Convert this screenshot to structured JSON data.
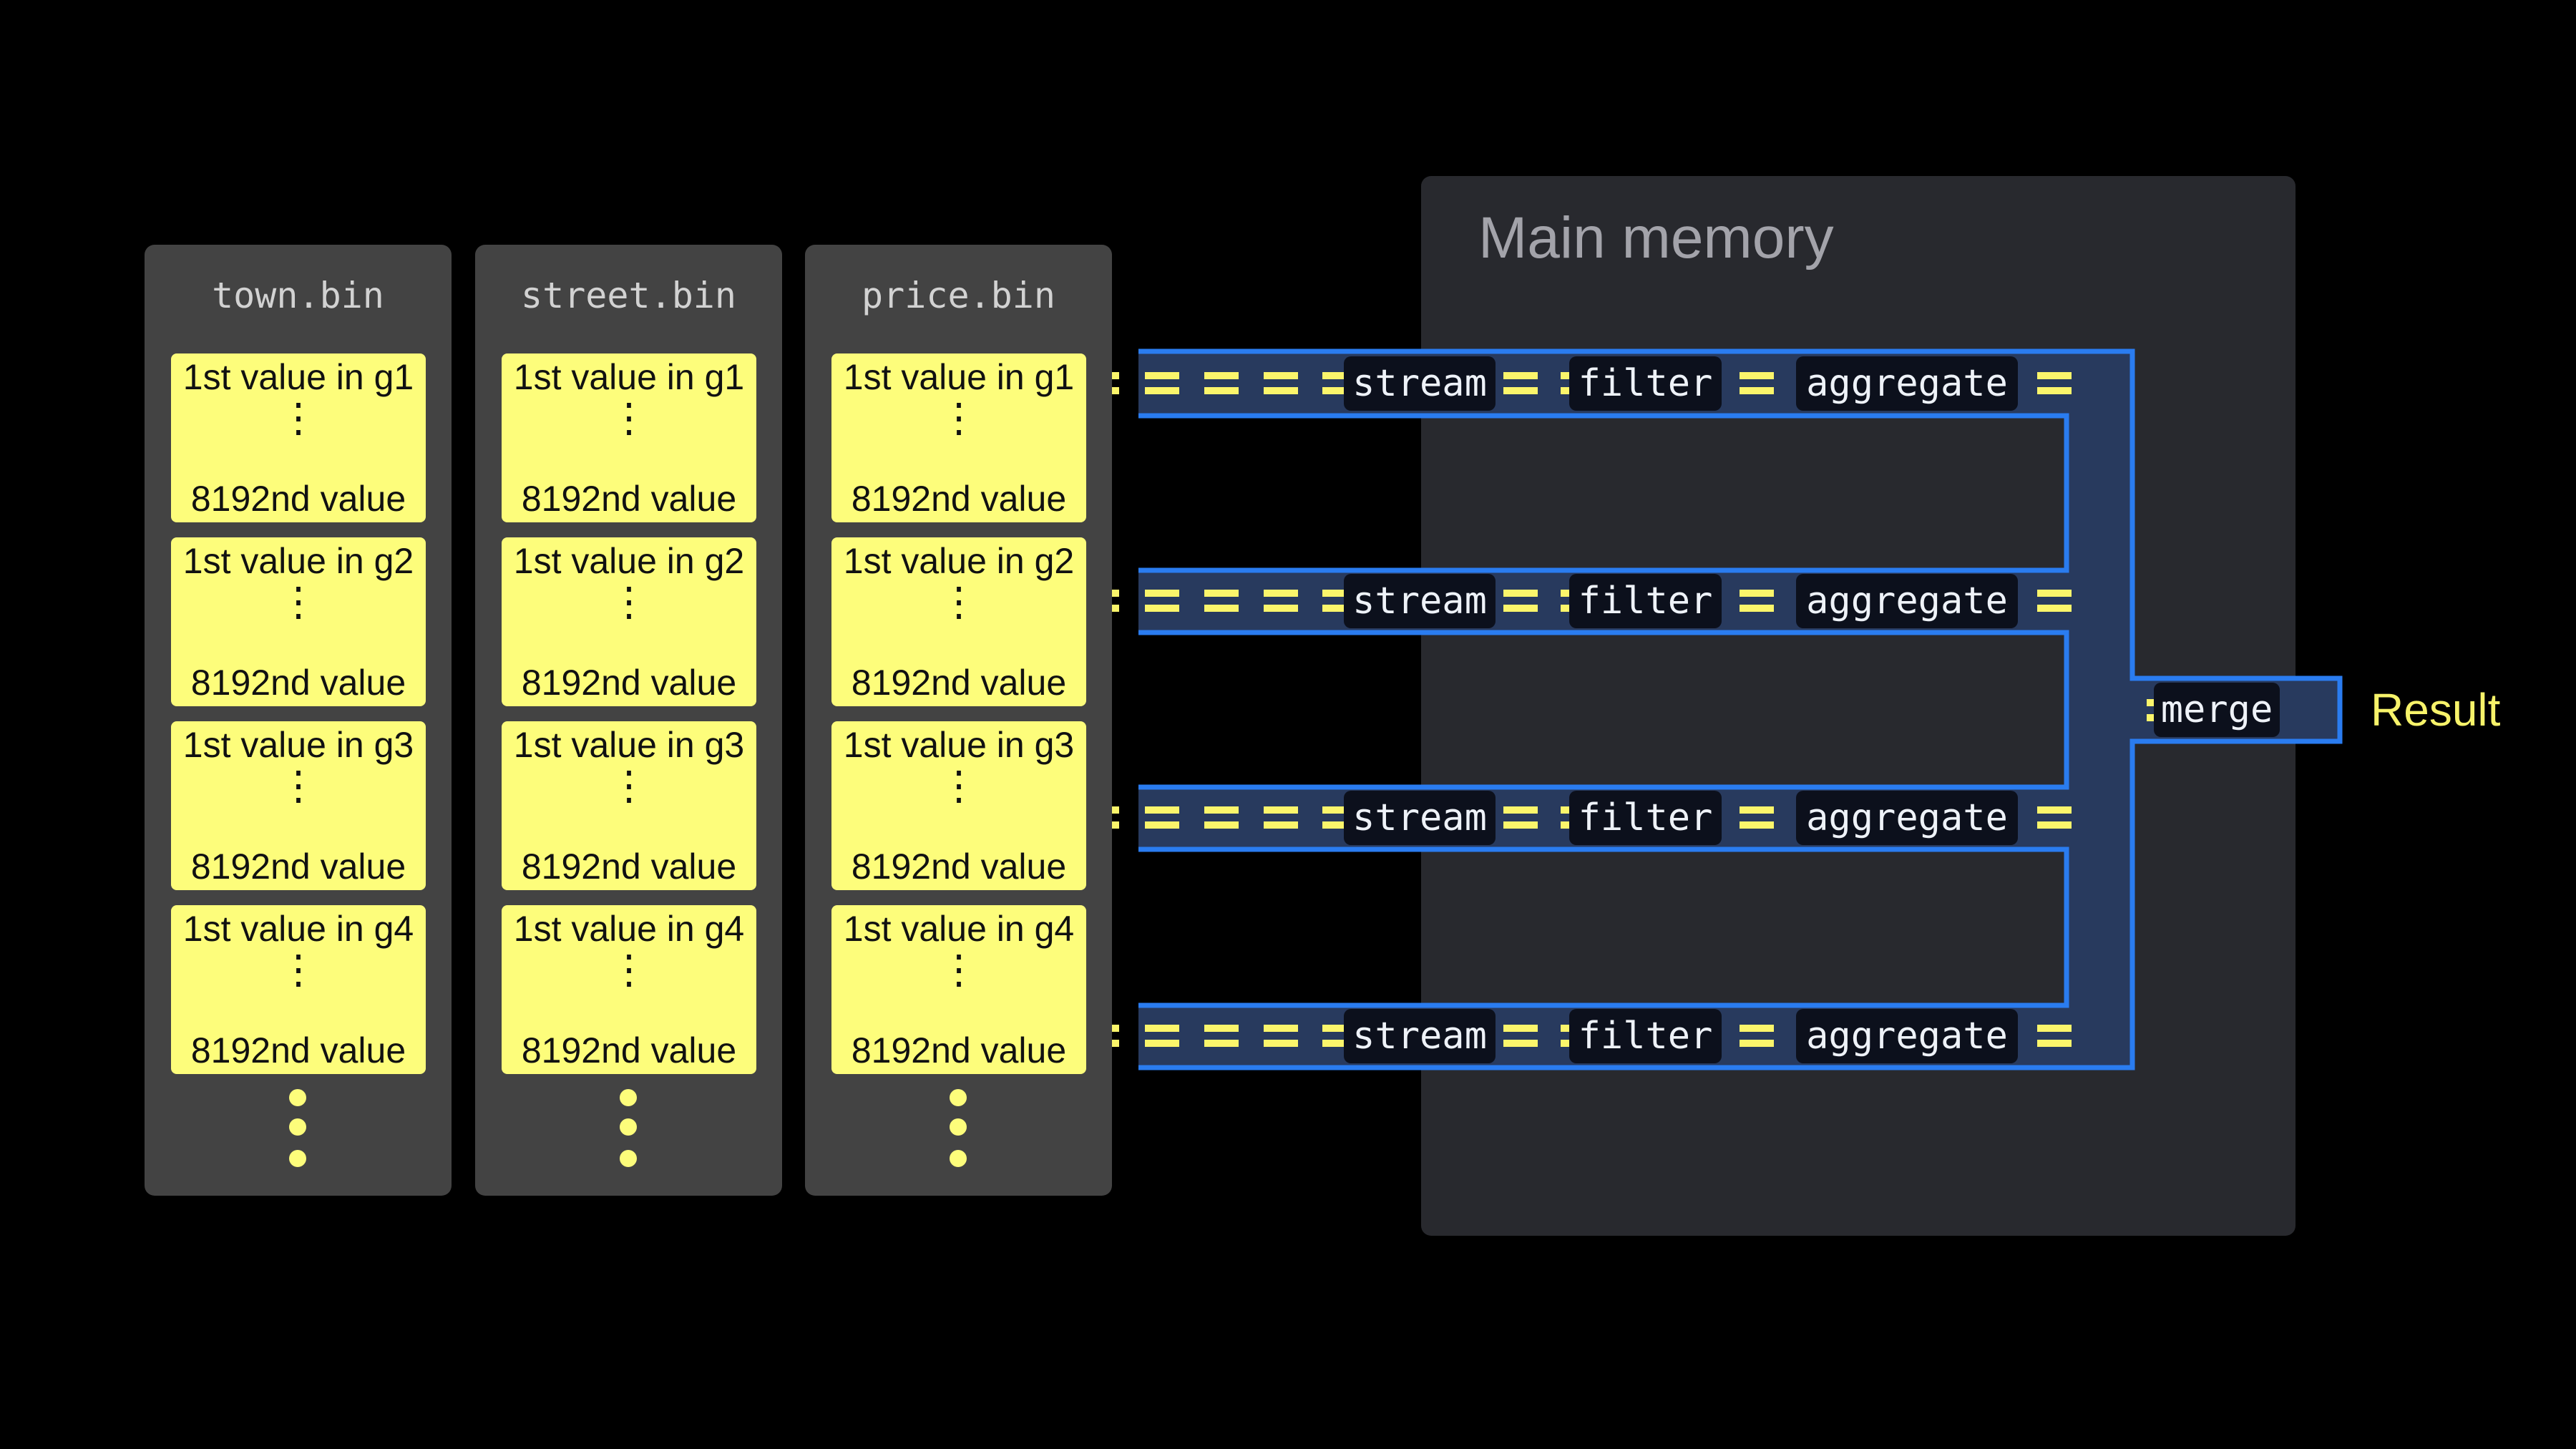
{
  "columns": [
    {
      "title": "town.bin",
      "cards": [
        {
          "first": "1st value in g1",
          "dots": "⋮",
          "last": "8192nd value"
        },
        {
          "first": "1st value in g2",
          "dots": "⋮",
          "last": "8192nd value"
        },
        {
          "first": "1st value in g3",
          "dots": "⋮",
          "last": "8192nd value"
        },
        {
          "first": "1st value in g4",
          "dots": "⋮",
          "last": "8192nd value"
        }
      ]
    },
    {
      "title": "street.bin",
      "cards": [
        {
          "first": "1st value in g1",
          "dots": "⋮",
          "last": "8192nd value"
        },
        {
          "first": "1st value in g2",
          "dots": "⋮",
          "last": "8192nd value"
        },
        {
          "first": "1st value in g3",
          "dots": "⋮",
          "last": "8192nd value"
        },
        {
          "first": "1st value in g4",
          "dots": "⋮",
          "last": "8192nd value"
        }
      ]
    },
    {
      "title": "price.bin",
      "cards": [
        {
          "first": "1st value in g1",
          "dots": "⋮",
          "last": "8192nd value"
        },
        {
          "first": "1st value in g2",
          "dots": "⋮",
          "last": "8192nd value"
        },
        {
          "first": "1st value in g3",
          "dots": "⋮",
          "last": "8192nd value"
        },
        {
          "first": "1st value in g4",
          "dots": "⋮",
          "last": "8192nd value"
        }
      ]
    }
  ],
  "memory": {
    "title": "Main memory"
  },
  "pipelines": [
    {
      "stages": [
        "stream",
        "filter",
        "aggregate"
      ]
    },
    {
      "stages": [
        "stream",
        "filter",
        "aggregate"
      ]
    },
    {
      "stages": [
        "stream",
        "filter",
        "aggregate"
      ]
    },
    {
      "stages": [
        "stream",
        "filter",
        "aggregate"
      ]
    }
  ],
  "merge": {
    "label": "merge"
  },
  "result": {
    "label": "Result"
  },
  "colors": {
    "background": "#000000",
    "column_panel": "#434343",
    "card": "#fdfd7b",
    "memory_panel": "#28292e",
    "pipe_fill": "#283a5e",
    "pipe_stroke": "#2a7cf0",
    "data_flow": "#fbf56b",
    "result_text": "#f7f36a"
  }
}
